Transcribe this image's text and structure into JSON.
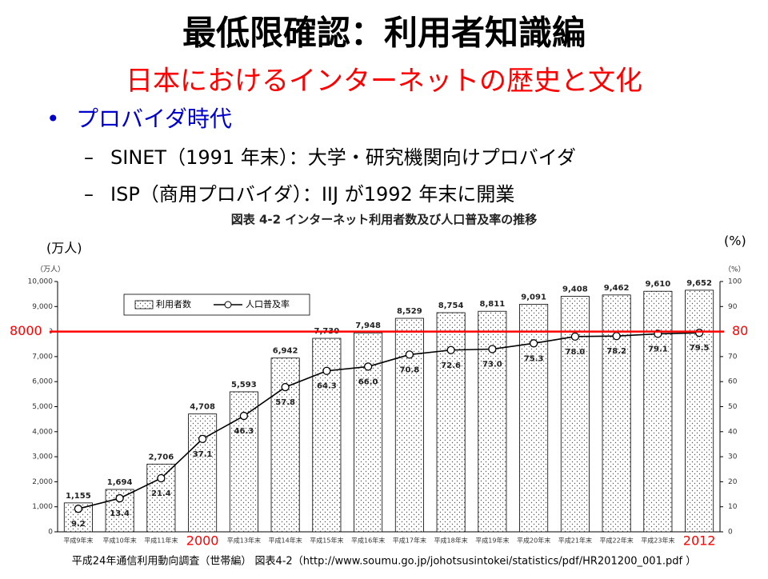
{
  "slide": {
    "title": "最低限確認：利用者知識編",
    "subtitle": "日本におけるインターネットの歴史と文化",
    "bullet": "プロバイダ時代",
    "sub_bullets": [
      "SINET（1991 年末）：大学・研究機関向けプロバイダ",
      "ISP（商用プロバイダ）：IIJ が1992 年末に開業"
    ],
    "source": "平成24年通信利用動向調査（世帯編） 図表4-2（http://www.soumu.go.jp/johotsusintokei/statistics/pdf/HR201200_001.pdf ）"
  },
  "chart_data": {
    "type": "bar-line",
    "title": "図表 4-2 インターネット利用者数及び人口普及率の推移",
    "y_unit_outer": "(万人)",
    "y2_unit_outer": "(%)",
    "y_unit": "（万人）",
    "y2_unit": "（%）",
    "categories": [
      "平成9年末",
      "平成10年末",
      "平成11年末",
      "2000",
      "平成13年末",
      "平成14年末",
      "平成15年末",
      "平成16年末",
      "平成17年末",
      "平成18年末",
      "平成19年末",
      "平成20年末",
      "平成21年末",
      "平成22年末",
      "平成23年末",
      "2012"
    ],
    "series": [
      {
        "name": "利用者数",
        "color": "#000000",
        "values": [
          1155,
          1694,
          2706,
          4708,
          5593,
          6942,
          7730,
          7948,
          8529,
          8754,
          8811,
          9091,
          9408,
          9462,
          9610,
          9652
        ],
        "value_labels": [
          "1,155",
          "1,694",
          "2,706",
          "4,708",
          "5,593",
          "6,942",
          "7,730",
          "7,948",
          "8,529",
          "8,754",
          "8,811",
          "9,091",
          "9,408",
          "9,462",
          "9,610",
          "9,652"
        ]
      },
      {
        "name": "人口普及率",
        "color": "#000000",
        "axis": "y2",
        "values": [
          9.2,
          13.4,
          21.4,
          37.1,
          46.3,
          57.8,
          64.3,
          66.0,
          70.8,
          72.6,
          73.0,
          75.3,
          78.0,
          78.2,
          79.1,
          79.5
        ],
        "value_labels": [
          "9.2",
          "13.4",
          "21.4",
          "37.1",
          "46.3",
          "57.8",
          "64.3",
          "66.0",
          "70.8",
          "72.6",
          "73.0",
          "75.3",
          "78.0",
          "78.2",
          "79.1",
          "79.5"
        ]
      }
    ],
    "ylim": [
      0,
      10000
    ],
    "yticks": [
      0,
      {
        "value": 1000,
        "label": "1,000"
      },
      {
        "value": 2000,
        "label": "2,000"
      },
      {
        "value": 3000,
        "label": "3,000"
      },
      {
        "value": 4000,
        "label": "4,000"
      },
      {
        "value": 5000,
        "label": "5,000"
      },
      {
        "value": 6000,
        "label": "6,000"
      },
      {
        "value": 7000,
        "label": "7,000"
      },
      {
        "value": 8000,
        "label": "8,000"
      },
      {
        "value": 9000,
        "label": "9,000"
      },
      {
        "value": 10000,
        "label": "10,000"
      }
    ],
    "y2lim": [
      0,
      100
    ],
    "y2ticks": [
      0,
      10,
      20,
      30,
      40,
      50,
      60,
      70,
      80,
      90,
      100
    ],
    "reference_line": {
      "y": 8000,
      "y2": 80,
      "color": "#ff0000"
    }
  }
}
